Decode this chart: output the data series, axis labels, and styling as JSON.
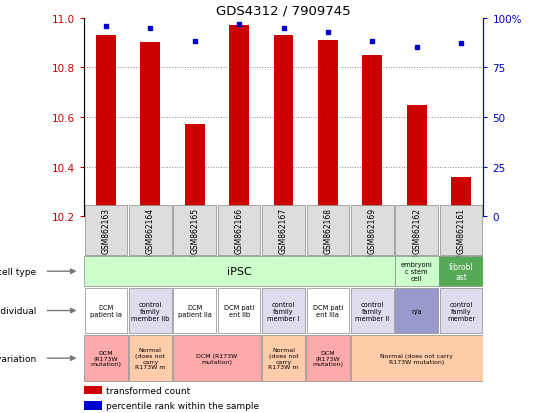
{
  "title": "GDS4312 / 7909745",
  "samples": [
    "GSM862163",
    "GSM862164",
    "GSM862165",
    "GSM862166",
    "GSM862167",
    "GSM862168",
    "GSM862169",
    "GSM862162",
    "GSM862161"
  ],
  "bar_values": [
    10.93,
    10.9,
    10.57,
    10.97,
    10.93,
    10.91,
    10.85,
    10.65,
    10.36
  ],
  "dot_values": [
    96,
    95,
    88,
    97,
    95,
    93,
    88,
    85,
    87
  ],
  "bar_bottom": 10.2,
  "ylim": [
    10.2,
    11.0
  ],
  "y2lim": [
    0,
    100
  ],
  "yticks": [
    10.2,
    10.4,
    10.6,
    10.8,
    11.0
  ],
  "y2ticks": [
    0,
    25,
    50,
    75,
    100
  ],
  "bar_color": "#cc0000",
  "dot_color": "#0000cc",
  "tick_color_left": "#cc0000",
  "tick_color_right": "#0000cc",
  "individual_cells": [
    {
      "text": "DCM\npatient Ia",
      "col": 0,
      "color": "#ffffff"
    },
    {
      "text": "control\nfamily\nmember IIb",
      "col": 1,
      "color": "#ddddee"
    },
    {
      "text": "DCM\npatient IIa",
      "col": 2,
      "color": "#ffffff"
    },
    {
      "text": "DCM pati\nent IIb",
      "col": 3,
      "color": "#ffffff"
    },
    {
      "text": "control\nfamily\nmember I",
      "col": 4,
      "color": "#ddddee"
    },
    {
      "text": "DCM pati\nent IIIa",
      "col": 5,
      "color": "#ffffff"
    },
    {
      "text": "control\nfamily\nmember II",
      "col": 6,
      "color": "#ddddee"
    },
    {
      "text": "n/a",
      "col": 7,
      "color": "#9999cc"
    },
    {
      "text": "control\nfamily\nmember",
      "col": 8,
      "color": "#ddddee"
    }
  ],
  "genotype_groups": [
    {
      "text": "DCM\n(R173W\nmutation)",
      "start": 0,
      "end": 1,
      "color": "#ffaaaa"
    },
    {
      "text": "Normal\n(does not\ncarry\nR173W m",
      "start": 1,
      "end": 2,
      "color": "#ffccaa"
    },
    {
      "text": "DCM (R173W\nmutation)",
      "start": 2,
      "end": 4,
      "color": "#ffaaaa"
    },
    {
      "text": "Normal\n(does not\ncarry\nR173W m",
      "start": 4,
      "end": 5,
      "color": "#ffccaa"
    },
    {
      "text": "DCM\n(R173W\nmutation)",
      "start": 5,
      "end": 6,
      "color": "#ffaaaa"
    },
    {
      "text": "Normal (does not carry\nR173W mutation)",
      "start": 6,
      "end": 9,
      "color": "#ffccaa"
    }
  ]
}
